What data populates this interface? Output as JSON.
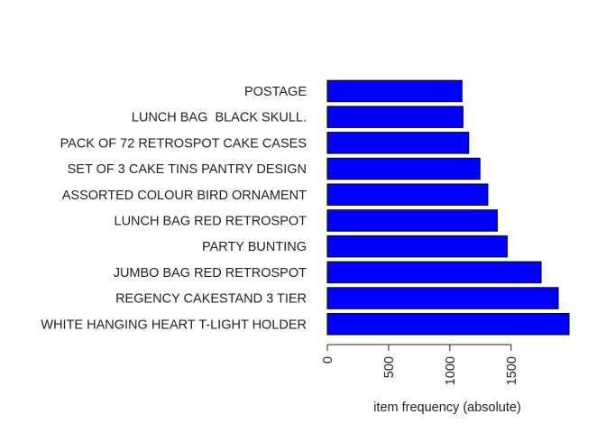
{
  "chart_data": {
    "type": "bar",
    "orientation": "horizontal",
    "categories": [
      "WHITE HANGING HEART T-LIGHT HOLDER",
      "REGENCY CAKESTAND 3 TIER",
      "JUMBO BAG RED RETROSPOT",
      "PARTY BUNTING",
      "LUNCH BAG RED RETROSPOT",
      "ASSORTED COLOUR BIRD ORNAMENT",
      "SET OF 3 CAKE TINS PANTRY DESIGN",
      "PACK OF 72 RETROSPOT CAKE CASES",
      "LUNCH BAG  BLACK SKULL.",
      "POSTAGE"
    ],
    "values": [
      1973,
      1885,
      1745,
      1468,
      1387,
      1310,
      1246,
      1154,
      1107,
      1099
    ],
    "xlabel": "item frequency (absolute)",
    "ylabel": "",
    "title": "",
    "xticks": [
      0,
      500,
      1000,
      1500
    ],
    "xlim": [
      0,
      1973
    ],
    "bar_color": "#0000ff",
    "grid": false
  }
}
